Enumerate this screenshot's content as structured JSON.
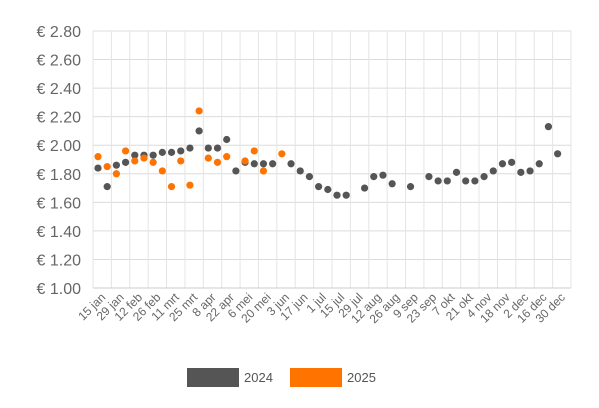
{
  "chart_data": {
    "type": "scatter",
    "y_tick_labels": [
      "€ 1.00",
      "€ 1.20",
      "€ 1.40",
      "€ 1.60",
      "€ 1.80",
      "€ 2.00",
      "€ 2.20",
      "€ 2.40",
      "€ 2.60",
      "€ 2.80"
    ],
    "ylim": [
      1.0,
      2.8
    ],
    "x_tick_labels": [
      "15 jan",
      "29 jan",
      "12 feb",
      "26 feb",
      "11 mrt",
      "25 mrt",
      "8 apr",
      "22 apr",
      "6 mei",
      "20 mei",
      "3 jun",
      "17 jun",
      "1 jul",
      "15 jul",
      "29 jul",
      "12 aug",
      "26 aug",
      "9 sep",
      "23 sep",
      "7 okt",
      "21 okt",
      "4 nov",
      "18 nov",
      "2 dec",
      "16 dec",
      "30 dec"
    ],
    "x_unit": "week",
    "grid": true,
    "legend_position": "bottom",
    "series": [
      {
        "name": "2024",
        "color": "#555555",
        "points": [
          [
            0,
            1.84
          ],
          [
            1,
            1.71
          ],
          [
            2,
            1.86
          ],
          [
            3,
            1.88
          ],
          [
            4,
            1.93
          ],
          [
            5,
            1.93
          ],
          [
            6,
            1.93
          ],
          [
            7,
            1.95
          ],
          [
            8,
            1.95
          ],
          [
            9,
            1.96
          ],
          [
            10,
            1.98
          ],
          [
            11,
            2.1
          ],
          [
            12,
            1.98
          ],
          [
            13,
            1.98
          ],
          [
            14,
            2.04
          ],
          [
            15,
            1.82
          ],
          [
            16,
            1.88
          ],
          [
            17,
            1.87
          ],
          [
            18,
            1.87
          ],
          [
            19,
            1.87
          ],
          [
            21,
            1.87
          ],
          [
            22,
            1.82
          ],
          [
            23,
            1.78
          ],
          [
            24,
            1.71
          ],
          [
            25,
            1.69
          ],
          [
            26,
            1.65
          ],
          [
            27,
            1.65
          ],
          [
            29,
            1.7
          ],
          [
            30,
            1.78
          ],
          [
            31,
            1.79
          ],
          [
            32,
            1.73
          ],
          [
            34,
            1.71
          ],
          [
            36,
            1.78
          ],
          [
            37,
            1.75
          ],
          [
            38,
            1.75
          ],
          [
            39,
            1.81
          ],
          [
            40,
            1.75
          ],
          [
            41,
            1.75
          ],
          [
            42,
            1.78
          ],
          [
            43,
            1.82
          ],
          [
            44,
            1.87
          ],
          [
            45,
            1.88
          ],
          [
            46,
            1.81
          ],
          [
            47,
            1.82
          ],
          [
            48,
            1.87
          ],
          [
            49,
            2.13
          ],
          [
            50,
            1.94
          ]
        ]
      },
      {
        "name": "2025",
        "color": "#ff7300",
        "points": [
          [
            0,
            1.92
          ],
          [
            1,
            1.85
          ],
          [
            2,
            1.8
          ],
          [
            3,
            1.96
          ],
          [
            4,
            1.89
          ],
          [
            5,
            1.91
          ],
          [
            6,
            1.88
          ],
          [
            7,
            1.82
          ],
          [
            8,
            1.71
          ],
          [
            9,
            1.89
          ],
          [
            10,
            1.72
          ],
          [
            11,
            2.24
          ],
          [
            12,
            1.91
          ],
          [
            13,
            1.88
          ],
          [
            14,
            1.92
          ],
          [
            16,
            1.89
          ],
          [
            17,
            1.96
          ],
          [
            18,
            1.82
          ],
          [
            20,
            1.94
          ]
        ]
      }
    ]
  }
}
